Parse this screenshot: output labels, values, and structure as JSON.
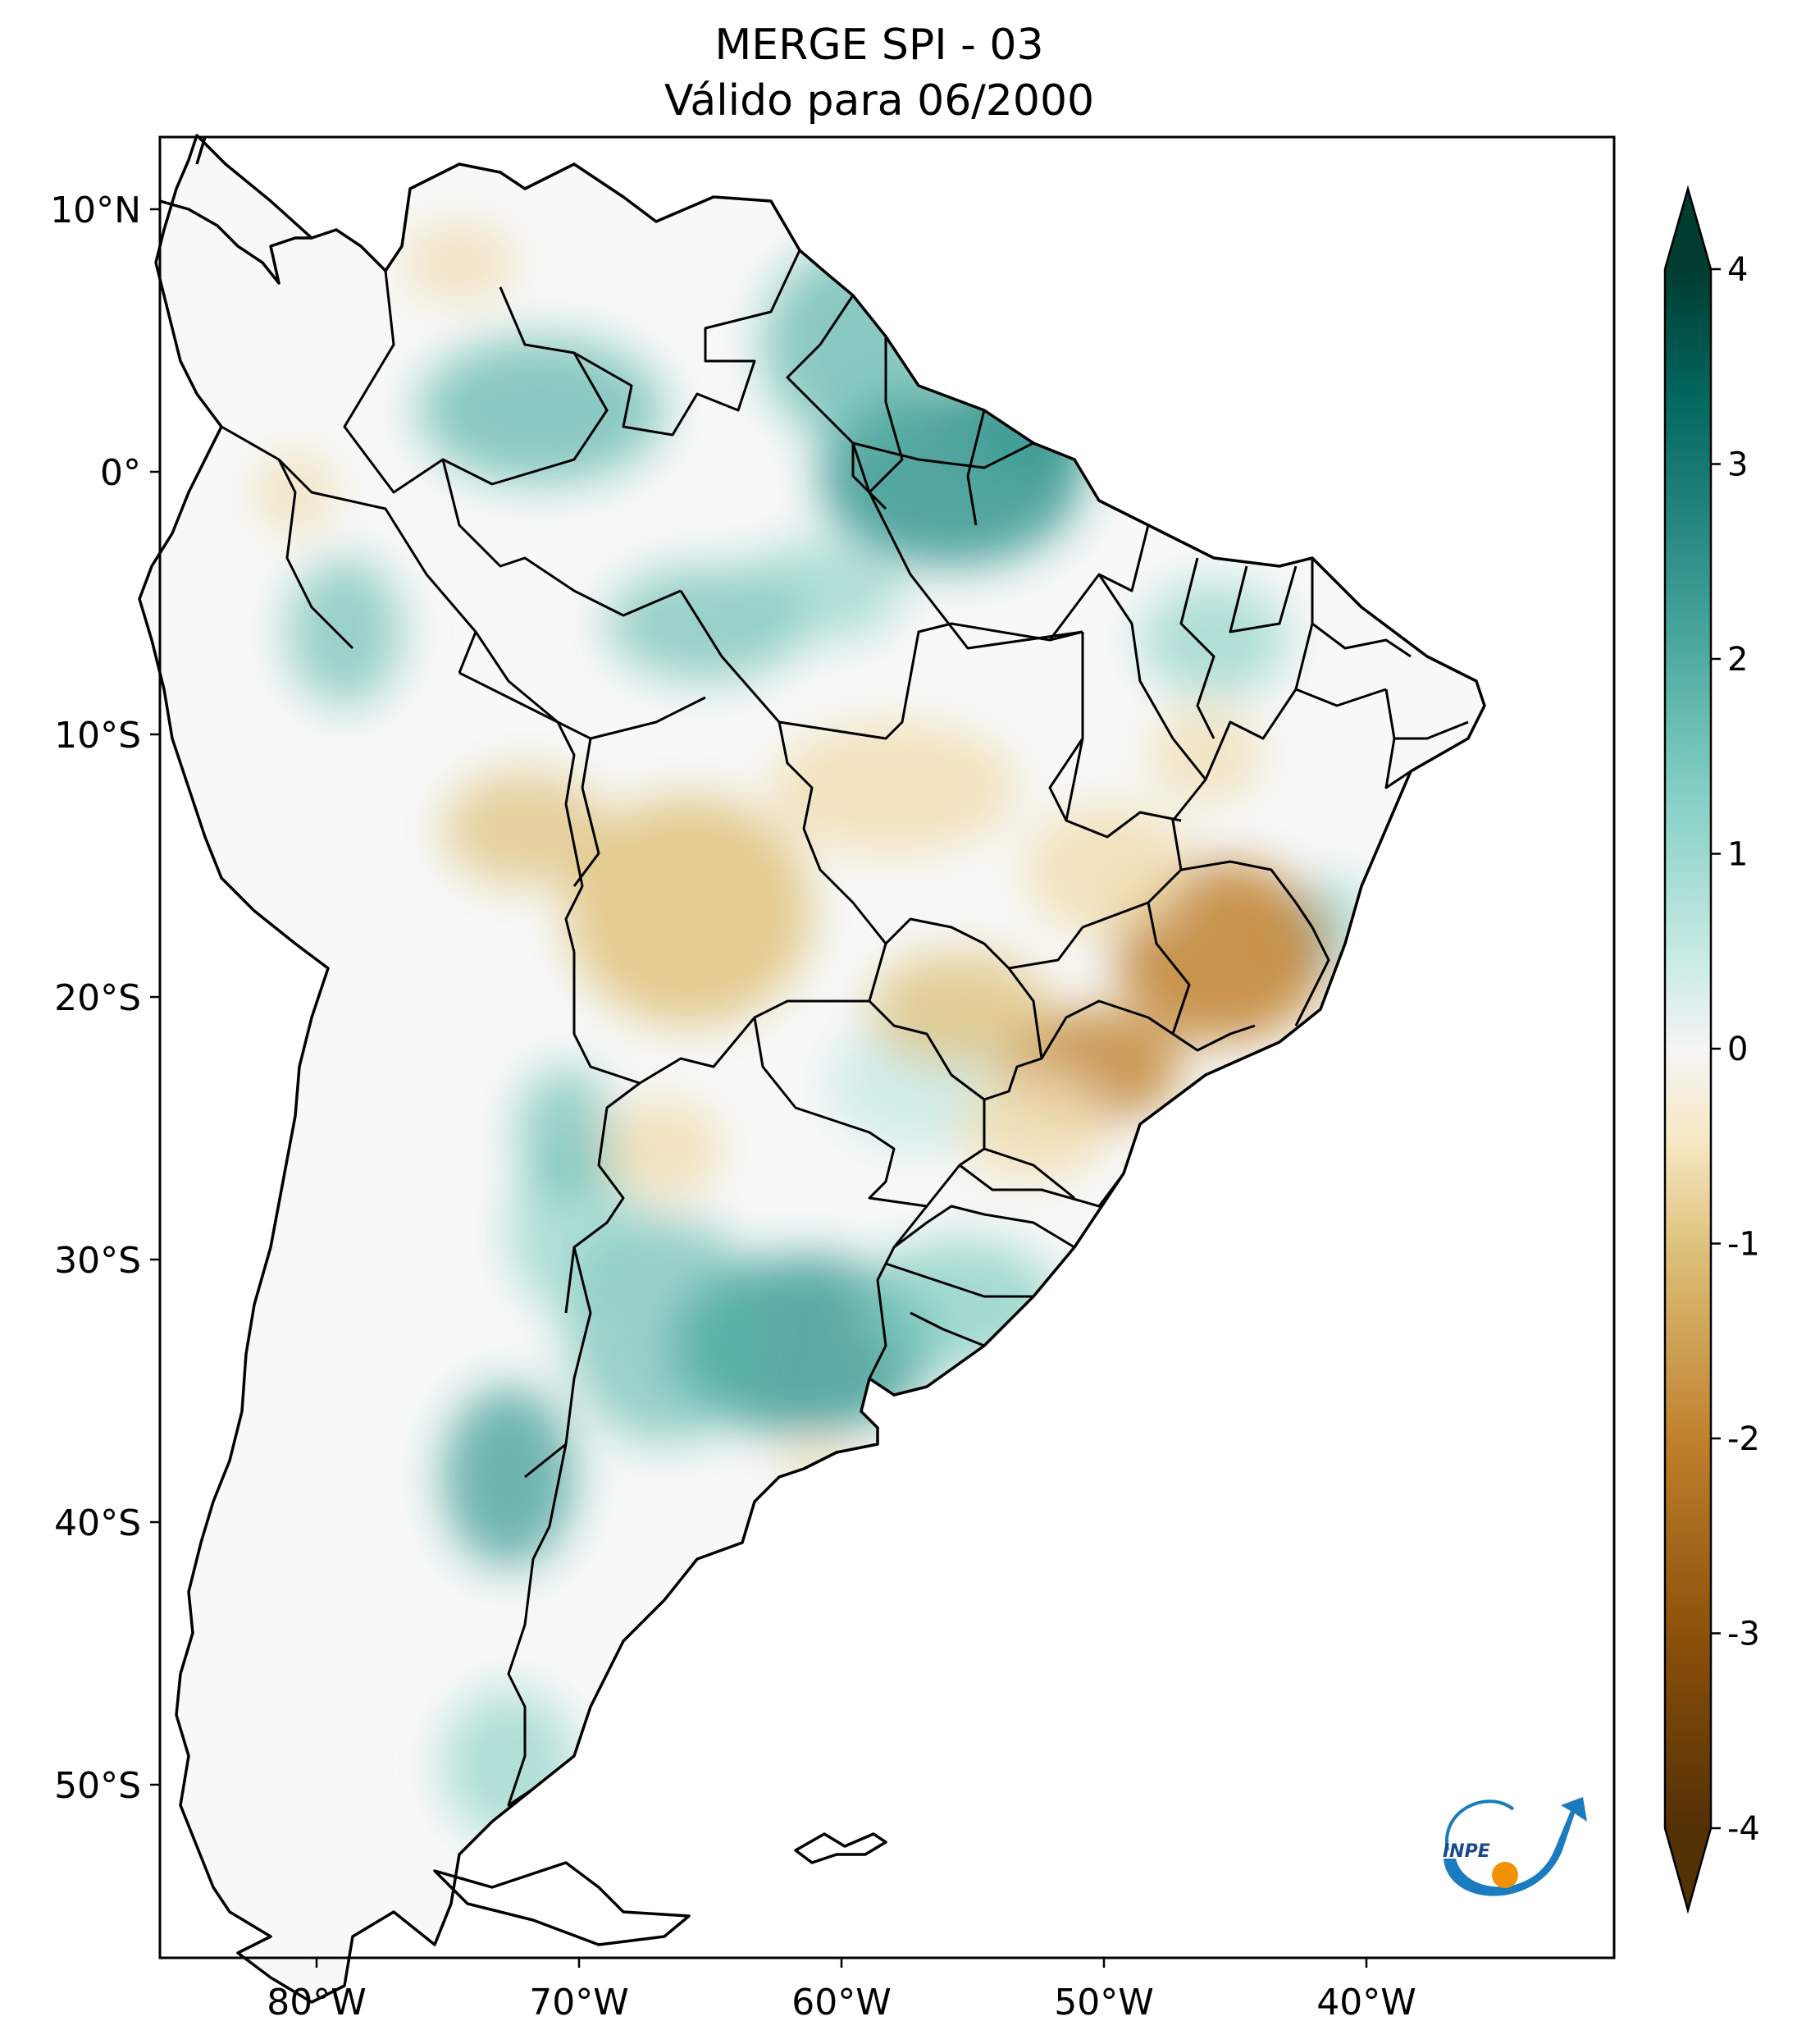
{
  "title": {
    "line1": "MERGE   SPI - 03",
    "line2": "Válido para 06/2000"
  },
  "map": {
    "lon_range": [
      -85,
      -29
    ],
    "lat_range": [
      -57,
      13
    ],
    "lon_ticks": [
      {
        "value": -80,
        "label": "80°W"
      },
      {
        "value": -70,
        "label": "70°W"
      },
      {
        "value": -60,
        "label": "60°W"
      },
      {
        "value": -50,
        "label": "50°W"
      },
      {
        "value": -40,
        "label": "40°W"
      }
    ],
    "lat_ticks": [
      {
        "value": 10,
        "label": "10°N"
      },
      {
        "value": 0,
        "label": "0°"
      },
      {
        "value": -10,
        "label": "10°S"
      },
      {
        "value": -20,
        "label": "20°S"
      },
      {
        "value": -30,
        "label": "30°S"
      },
      {
        "value": -40,
        "label": "40°S"
      },
      {
        "value": -50,
        "label": "50°S"
      }
    ]
  },
  "colorbar": {
    "range": [
      -4,
      4
    ],
    "extend": "both",
    "ticks": [
      {
        "value": 4,
        "label": "4"
      },
      {
        "value": 3,
        "label": "3"
      },
      {
        "value": 2,
        "label": "2"
      },
      {
        "value": 1,
        "label": "1"
      },
      {
        "value": 0,
        "label": "0"
      },
      {
        "value": -1,
        "label": "-1"
      },
      {
        "value": -2,
        "label": "-2"
      },
      {
        "value": -3,
        "label": "-3"
      },
      {
        "value": -4,
        "label": "-4"
      }
    ],
    "colors": [
      "#543005",
      "#8c510a",
      "#bf812d",
      "#dfc27d",
      "#f6e8c3",
      "#f5f5f5",
      "#c7eae5",
      "#80cdc1",
      "#35978f",
      "#01665e",
      "#003c30"
    ]
  },
  "logo": {
    "text": "INPE",
    "colors": {
      "blue": "#1a7bbf",
      "orange": "#f39200"
    }
  }
}
